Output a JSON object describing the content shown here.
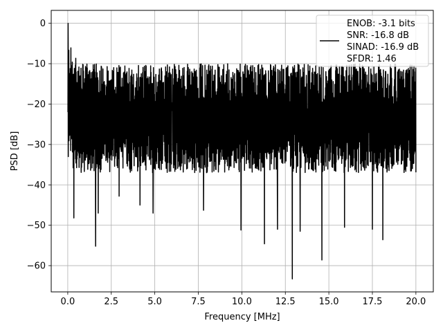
{
  "chart_data": {
    "type": "line",
    "title": "",
    "xlabel": "Frequency [MHz]",
    "ylabel": "PSD [dB]",
    "xlim": [
      -0.95,
      21.0
    ],
    "ylim": [
      -66.5,
      3.2
    ],
    "xticks": [
      0.0,
      2.5,
      5.0,
      7.5,
      10.0,
      12.5,
      15.0,
      17.5,
      20.0
    ],
    "xtick_labels": [
      "0.0",
      "2.5",
      "5.0",
      "7.5",
      "10.0",
      "12.5",
      "15.0",
      "17.5",
      "20.0"
    ],
    "yticks": [
      0,
      -10,
      -20,
      -30,
      -40,
      -50,
      -60
    ],
    "ytick_labels": [
      "0",
      "−10",
      "−20",
      "−30",
      "−40",
      "−50",
      "−60"
    ],
    "grid": true,
    "legend_position": "top-right",
    "legend_lines": [
      "ENOB: -3.1 bits",
      "SNR: -16.8 dB",
      "SINAD: -16.9 dB",
      "SFDR: 1.46"
    ],
    "series_color": "#000000",
    "x_range": [
      0.0,
      20.0
    ],
    "num_points": 2000,
    "peak": {
      "x": 0.02,
      "y": 0.0
    },
    "baseline": {
      "upper": -15,
      "mean": -22.5,
      "lower": -32
    },
    "dips": [
      {
        "x": 0.35,
        "y": -48.2
      },
      {
        "x": 1.6,
        "y": -55.2
      },
      {
        "x": 1.75,
        "y": -47.0
      },
      {
        "x": 2.95,
        "y": -42.8
      },
      {
        "x": 4.15,
        "y": -45.0
      },
      {
        "x": 4.9,
        "y": -47.0
      },
      {
        "x": 7.8,
        "y": -46.3
      },
      {
        "x": 9.95,
        "y": -51.2
      },
      {
        "x": 11.3,
        "y": -54.6
      },
      {
        "x": 12.05,
        "y": -51.0
      },
      {
        "x": 12.9,
        "y": -63.3
      },
      {
        "x": 13.35,
        "y": -51.5
      },
      {
        "x": 14.6,
        "y": -58.6
      },
      {
        "x": 15.9,
        "y": -50.5
      },
      {
        "x": 17.5,
        "y": -51.0
      },
      {
        "x": 18.1,
        "y": -53.6
      }
    ]
  }
}
